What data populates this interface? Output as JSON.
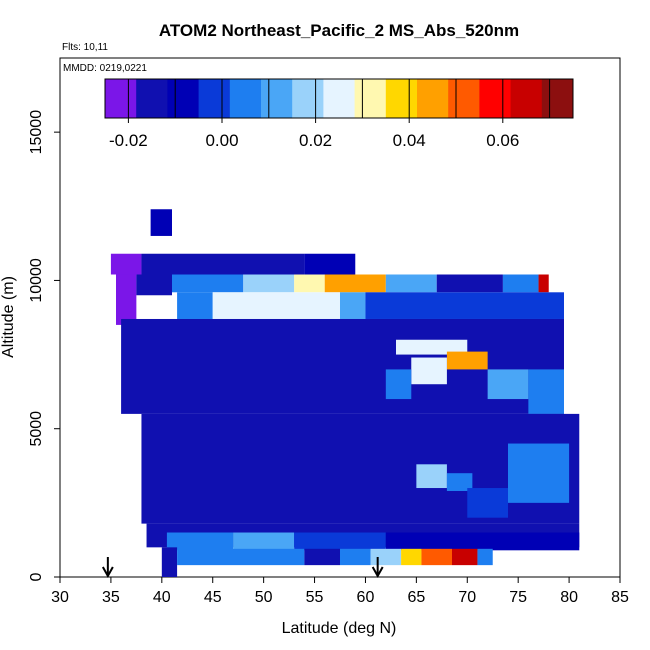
{
  "chart_data": {
    "type": "heatmap",
    "title": "ATOM2 Northeast_Pacific_2 MS_Abs_520nm",
    "flights_note": "Flts: 10,11",
    "date_note": "MMDD: 0219,0221",
    "xlabel": "Latitude (deg N)",
    "ylabel": "Altitude (m)",
    "xlim": [
      30,
      85
    ],
    "ylim": [
      0,
      17500
    ],
    "x_ticks": [
      30,
      35,
      40,
      45,
      50,
      55,
      60,
      65,
      70,
      75,
      80,
      85
    ],
    "y_ticks": [
      0,
      5000,
      10000,
      15000
    ],
    "colorbar": {
      "range": [
        -0.025,
        0.075
      ],
      "tick_values": [
        -0.02,
        0.0,
        0.02,
        0.04,
        0.06
      ],
      "tick_labels": [
        "-0.02",
        "0.00",
        "0.02",
        "0.04",
        "0.06"
      ],
      "colors": [
        "#7b16e8",
        "#1010b0",
        "#0000b5",
        "#0a3ad8",
        "#1e7ef0",
        "#4aa6f6",
        "#9ad2fa",
        "#e6f4ff",
        "#fff8b0",
        "#ffd700",
        "#ffa000",
        "#ff5a00",
        "#ff0000",
        "#c80000",
        "#8c0f0f"
      ]
    },
    "arrows": [
      34.7,
      61.2
    ],
    "field_patches": [
      {
        "lat": [
          38.9,
          41.0
        ],
        "alt": [
          11500,
          12400
        ],
        "value": -0.008
      },
      {
        "lat": [
          35.0,
          38.0
        ],
        "alt": [
          10200,
          10900
        ],
        "value": -0.024
      },
      {
        "lat": [
          38.0,
          54.0
        ],
        "alt": [
          10200,
          10900
        ],
        "value": -0.014
      },
      {
        "lat": [
          54.0,
          59.0
        ],
        "alt": [
          10200,
          10900
        ],
        "value": -0.011
      },
      {
        "lat": [
          35.5,
          37.5
        ],
        "alt": [
          8500,
          10200
        ],
        "value": -0.024
      },
      {
        "lat": [
          37.5,
          41.0
        ],
        "alt": [
          9500,
          10200
        ],
        "value": -0.016
      },
      {
        "lat": [
          41.0,
          48.0
        ],
        "alt": [
          9600,
          10200
        ],
        "value": 0.002
      },
      {
        "lat": [
          48.0,
          53.0
        ],
        "alt": [
          9600,
          10200
        ],
        "value": 0.018
      },
      {
        "lat": [
          53.0,
          56.0
        ],
        "alt": [
          9600,
          10200
        ],
        "value": 0.033
      },
      {
        "lat": [
          56.0,
          62.0
        ],
        "alt": [
          9600,
          10200
        ],
        "value": 0.043
      },
      {
        "lat": [
          62.0,
          67.0
        ],
        "alt": [
          9600,
          10200
        ],
        "value": 0.01
      },
      {
        "lat": [
          67.0,
          73.5
        ],
        "alt": [
          9600,
          10200
        ],
        "value": -0.012
      },
      {
        "lat": [
          73.5,
          77.0
        ],
        "alt": [
          9600,
          10200
        ],
        "value": 0.004
      },
      {
        "lat": [
          77.0,
          78.0
        ],
        "alt": [
          9600,
          10200
        ],
        "value": 0.065
      },
      {
        "lat": [
          41.5,
          45.0
        ],
        "alt": [
          8700,
          9600
        ],
        "value": 0.004
      },
      {
        "lat": [
          45.0,
          57.5
        ],
        "alt": [
          8700,
          9600
        ],
        "value": 0.022
      },
      {
        "lat": [
          57.5,
          60.0
        ],
        "alt": [
          8700,
          9600
        ],
        "value": 0.012
      },
      {
        "lat": [
          60.0,
          79.5
        ],
        "alt": [
          8700,
          9600
        ],
        "value": 0.001
      },
      {
        "lat": [
          36.0,
          79.5
        ],
        "alt": [
          5500,
          8700
        ],
        "value": -0.014
      },
      {
        "lat": [
          63.0,
          70.0
        ],
        "alt": [
          7500,
          8000
        ],
        "value": 0.022
      },
      {
        "lat": [
          68.0,
          72.0
        ],
        "alt": [
          7000,
          7600
        ],
        "value": 0.045
      },
      {
        "lat": [
          64.5,
          68.0
        ],
        "alt": [
          6500,
          7400
        ],
        "value": 0.026
      },
      {
        "lat": [
          62.0,
          64.5
        ],
        "alt": [
          6000,
          7000
        ],
        "value": 0.006
      },
      {
        "lat": [
          72.0,
          76.0
        ],
        "alt": [
          6000,
          7000
        ],
        "value": 0.014
      },
      {
        "lat": [
          76.0,
          79.5
        ],
        "alt": [
          5500,
          7000
        ],
        "value": 0.004
      },
      {
        "lat": [
          38.0,
          81.0
        ],
        "alt": [
          1800,
          5500
        ],
        "value": -0.013
      },
      {
        "lat": [
          65.0,
          68.0
        ],
        "alt": [
          3000,
          3800
        ],
        "value": 0.016
      },
      {
        "lat": [
          68.0,
          70.5
        ],
        "alt": [
          2900,
          3500
        ],
        "value": 0.006
      },
      {
        "lat": [
          70.0,
          74.0
        ],
        "alt": [
          2000,
          3000
        ],
        "value": 0.0
      },
      {
        "lat": [
          74.0,
          80.0
        ],
        "alt": [
          2500,
          4500
        ],
        "value": 0.006
      },
      {
        "lat": [
          38.5,
          81.0
        ],
        "alt": [
          1000,
          1800
        ],
        "value": -0.012
      },
      {
        "lat": [
          40.5,
          47.0
        ],
        "alt": [
          900,
          1500
        ],
        "value": 0.004
      },
      {
        "lat": [
          47.0,
          53.0
        ],
        "alt": [
          900,
          1500
        ],
        "value": 0.014
      },
      {
        "lat": [
          53.0,
          62.0
        ],
        "alt": [
          900,
          1500
        ],
        "value": 0.0
      },
      {
        "lat": [
          62.0,
          81.0
        ],
        "alt": [
          900,
          1500
        ],
        "value": -0.01
      },
      {
        "lat": [
          40.0,
          41.5
        ],
        "alt": [
          0,
          1000
        ],
        "value": -0.018
      },
      {
        "lat": [
          41.5,
          54.0
        ],
        "alt": [
          400,
          950
        ],
        "value": 0.006
      },
      {
        "lat": [
          54.0,
          57.5
        ],
        "alt": [
          400,
          950
        ],
        "value": -0.016
      },
      {
        "lat": [
          57.5,
          60.5
        ],
        "alt": [
          400,
          950
        ],
        "value": 0.002
      },
      {
        "lat": [
          60.5,
          63.5
        ],
        "alt": [
          400,
          950
        ],
        "value": 0.02
      },
      {
        "lat": [
          63.5,
          65.5
        ],
        "alt": [
          400,
          950
        ],
        "value": 0.036
      },
      {
        "lat": [
          65.5,
          68.5
        ],
        "alt": [
          400,
          950
        ],
        "value": 0.05
      },
      {
        "lat": [
          68.5,
          71.0
        ],
        "alt": [
          400,
          950
        ],
        "value": 0.063
      },
      {
        "lat": [
          71.0,
          72.5
        ],
        "alt": [
          400,
          950
        ],
        "value": 0.004
      }
    ]
  }
}
